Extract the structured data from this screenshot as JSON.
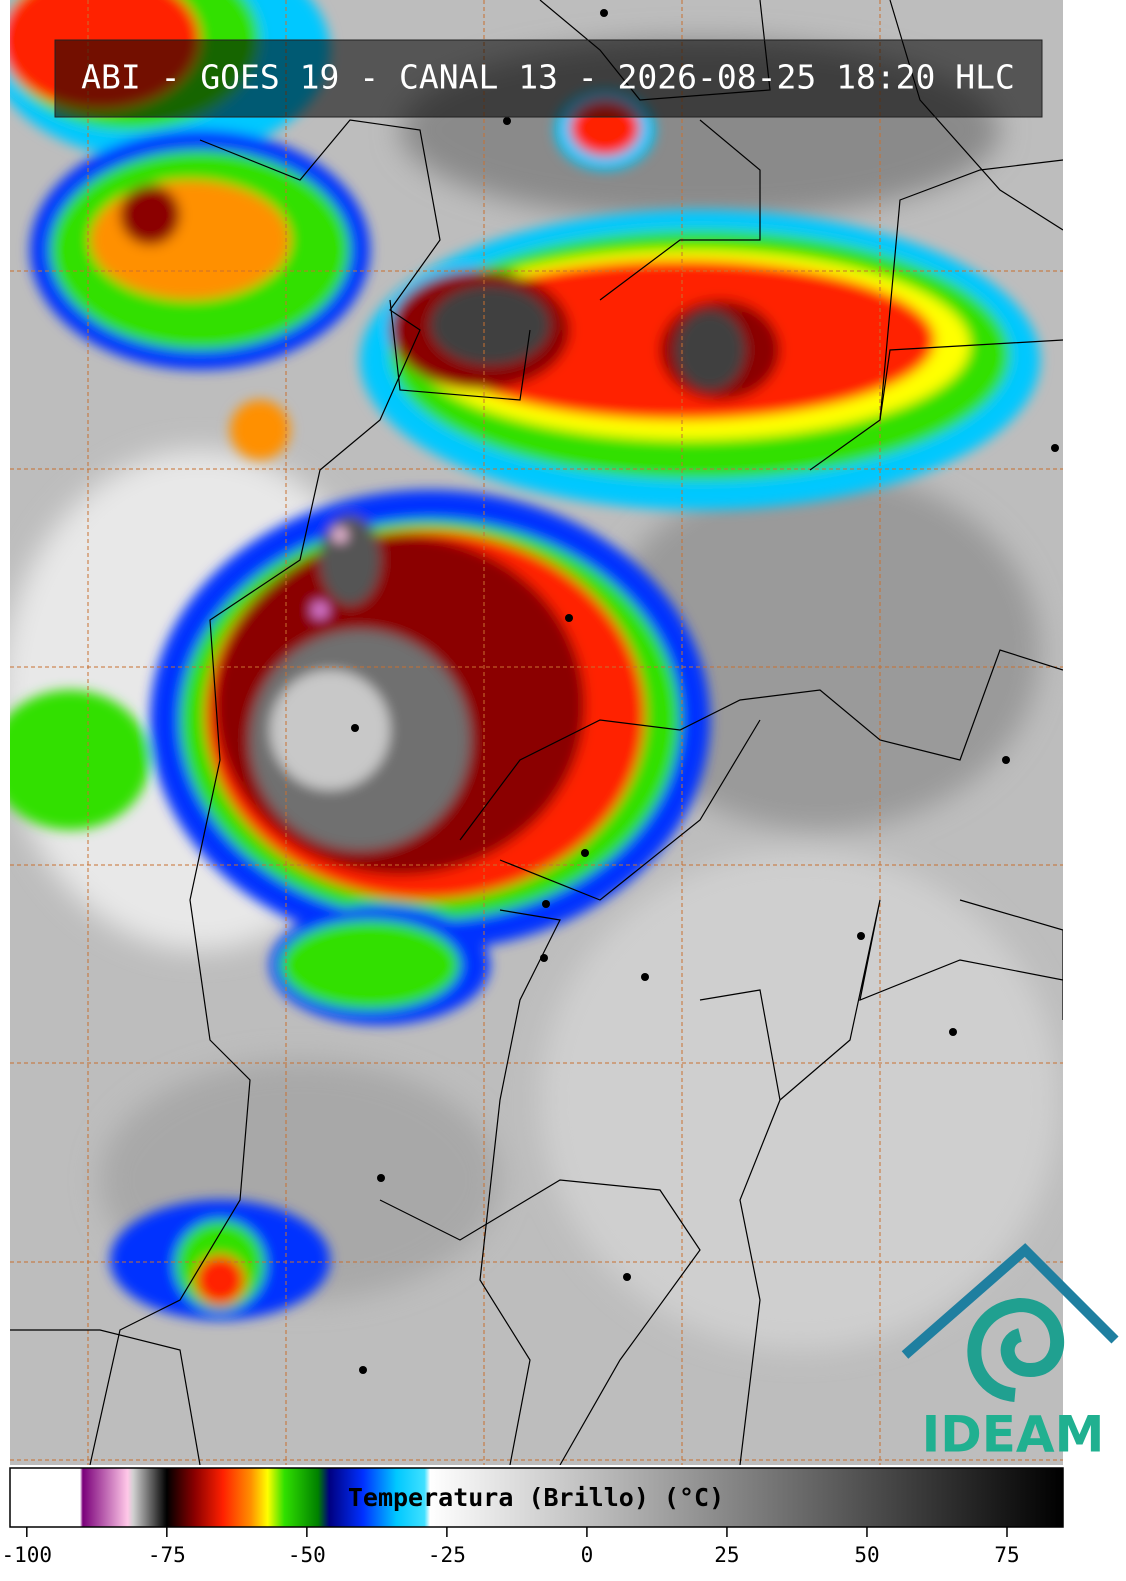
{
  "title": "ABI - GOES 19 - CANAL 13 - 2026-08-25 18:20 HLC",
  "logo": "IDEAM",
  "colorbar": {
    "label": "Temperatura (Brillo) (°C)",
    "lim": [
      -103,
      85
    ],
    "ticks": [
      -100,
      -75,
      -50,
      -25,
      0,
      25,
      50,
      75
    ],
    "colormap": [
      {
        "value": -103,
        "color": "#ffffff"
      },
      {
        "value": -90.5,
        "color": "#ffffff"
      },
      {
        "value": -90,
        "color": "#7a007a"
      },
      {
        "value": -82,
        "color": "#ffc8e8"
      },
      {
        "value": -81,
        "color": "#d0d0d0"
      },
      {
        "value": -75.5,
        "color": "#101010"
      },
      {
        "value": -75,
        "color": "#000000"
      },
      {
        "value": -70,
        "color": "#8b0000"
      },
      {
        "value": -65,
        "color": "#ff2000"
      },
      {
        "value": -60,
        "color": "#ff9000"
      },
      {
        "value": -57,
        "color": "#ffff00"
      },
      {
        "value": -54,
        "color": "#30e000"
      },
      {
        "value": -48,
        "color": "#008000"
      },
      {
        "value": -46,
        "color": "#000080"
      },
      {
        "value": -40,
        "color": "#0030ff"
      },
      {
        "value": -34,
        "color": "#00c8ff"
      },
      {
        "value": -29,
        "color": "#40e0ff"
      },
      {
        "value": -28,
        "color": "#ffffff"
      },
      {
        "value": 85,
        "color": "#000000"
      }
    ]
  }
}
